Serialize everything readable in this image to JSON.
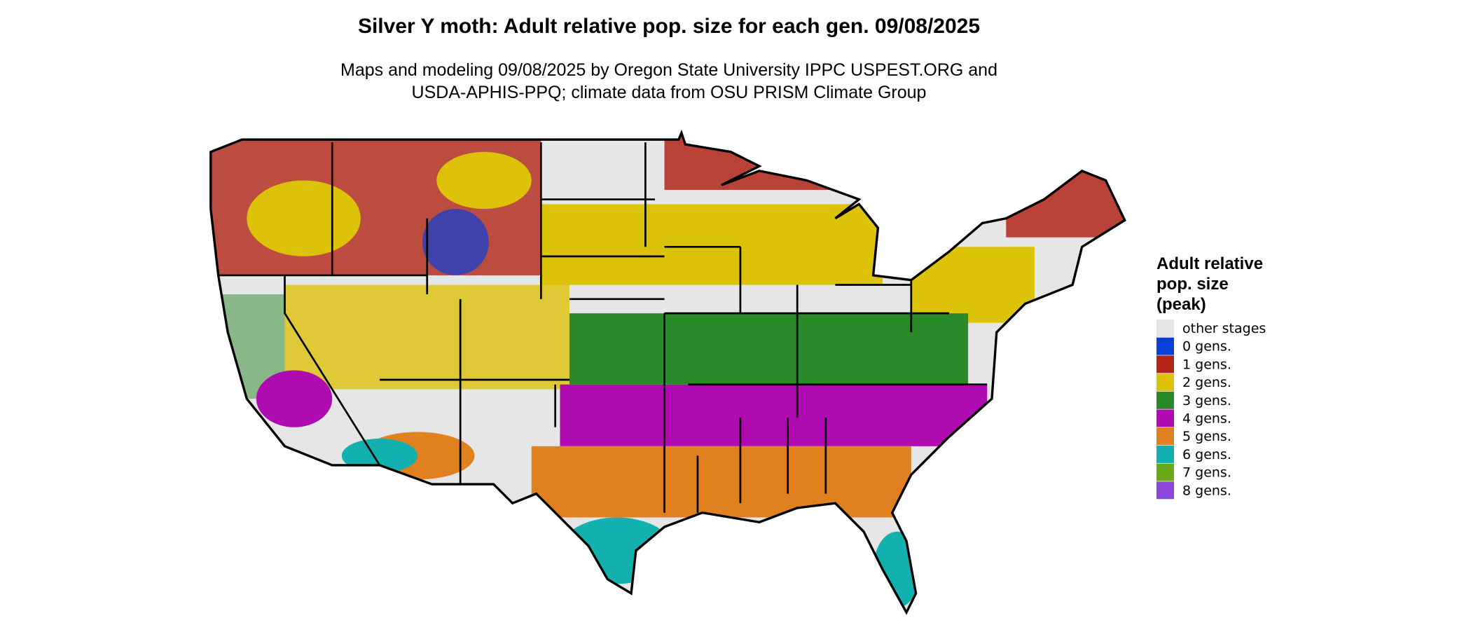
{
  "header": {
    "title": "Silver Y moth: Adult relative pop. size for each gen. 09/08/2025",
    "subtitle_lines": [
      "Maps and modeling 09/08/2025 by Oregon State University IPPC USPEST.ORG and",
      "USDA-APHIS-PPQ; climate data from OSU PRISM Climate Group"
    ]
  },
  "legend": {
    "title_lines": [
      "Adult relative",
      "pop. size",
      "(peak)"
    ],
    "items": [
      {
        "label": "other stages",
        "color": "#e6e6e6"
      },
      {
        "label": "0 gens.",
        "color": "#0a3fd8"
      },
      {
        "label": "1 gens.",
        "color": "#b22417"
      },
      {
        "label": "2 gens.",
        "color": "#ddc20a"
      },
      {
        "label": "3 gens.",
        "color": "#2a8a2a"
      },
      {
        "label": "4 gens.",
        "color": "#b00bb0"
      },
      {
        "label": "5 gens.",
        "color": "#e0801f"
      },
      {
        "label": "6 gens.",
        "color": "#13b0b0"
      },
      {
        "label": "7 gens.",
        "color": "#6aaa1a"
      },
      {
        "label": "8 gens.",
        "color": "#8a46d8"
      }
    ]
  }
}
